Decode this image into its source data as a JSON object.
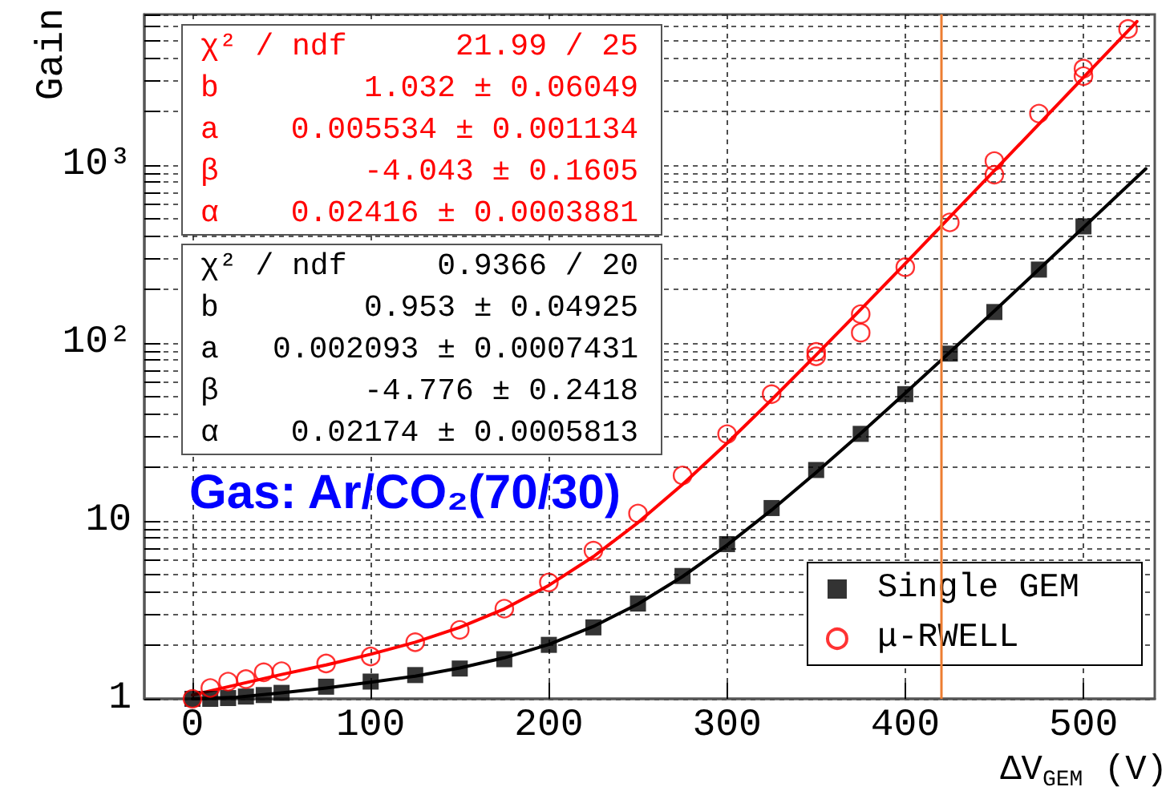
{
  "chart_data": {
    "type": "scatter",
    "xlabel": "ΔV$_{GEM}$ (V)",
    "ylabel": "Gain",
    "xlim": [
      -27,
      540
    ],
    "xticks": [
      0,
      100,
      200,
      300,
      400,
      500
    ],
    "ylim": [
      1,
      7000
    ],
    "yticks": [
      1,
      {
        "value": 2,
        "label": null
      },
      {
        "value": 3,
        "label": null
      },
      {
        "value": 4,
        "label": null
      },
      {
        "value": 5,
        "label": null
      },
      {
        "value": 6,
        "label": null
      },
      {
        "value": 7,
        "label": null
      },
      {
        "value": 8,
        "label": null
      },
      {
        "value": 9,
        "label": null
      },
      10,
      {
        "value": 20,
        "label": null
      },
      {
        "value": 30,
        "label": null
      },
      {
        "value": 40,
        "label": null
      },
      {
        "value": 50,
        "label": null
      },
      {
        "value": 60,
        "label": null
      },
      {
        "value": 70,
        "label": null
      },
      {
        "value": 80,
        "label": null
      },
      {
        "value": 90,
        "label": null
      },
      {
        "value": 100,
        "label": "10²"
      },
      {
        "value": 200,
        "label": null
      },
      {
        "value": 300,
        "label": null
      },
      {
        "value": 400,
        "label": null
      },
      {
        "value": 500,
        "label": null
      },
      {
        "value": 600,
        "label": null
      },
      {
        "value": 700,
        "label": null
      },
      {
        "value": 800,
        "label": null
      },
      {
        "value": 900,
        "label": null
      },
      {
        "value": 1000,
        "label": "10³"
      },
      {
        "value": 2000,
        "label": null
      },
      {
        "value": 3000,
        "label": null
      },
      {
        "value": 4000,
        "label": null
      },
      {
        "value": 5000,
        "label": null
      },
      {
        "value": 6000,
        "label": null
      },
      {
        "value": 7000,
        "label": null
      }
    ],
    "log": "y",
    "grid": true,
    "legend": "bottom right",
    "series": [
      {
        "name": "Single GEM",
        "color": "#000000",
        "marker": "square",
        "x": [
          0,
          10,
          20,
          30,
          40,
          50,
          75,
          100,
          125,
          150,
          175,
          200,
          225,
          250,
          275,
          300,
          325,
          350,
          375,
          400,
          425,
          450,
          475,
          500
        ],
        "values": [
          1.0,
          1.0,
          1.01,
          1.03,
          1.05,
          1.08,
          1.17,
          1.25,
          1.36,
          1.48,
          1.67,
          2.01,
          2.52,
          3.43,
          4.9,
          7.4,
          11.8,
          19.3,
          30.8,
          51.5,
          87,
          149,
          258,
          451
        ]
      },
      {
        "name": "μ-RWELL",
        "color": "#ff0000",
        "marker": "circle",
        "x": [
          0,
          10,
          20,
          30,
          40,
          50,
          75,
          100,
          125,
          150,
          175,
          200,
          225,
          250,
          275,
          300,
          325,
          350,
          350,
          375,
          375,
          400,
          425,
          450,
          450,
          475,
          500,
          500,
          525
        ],
        "values": [
          1.0,
          1.15,
          1.25,
          1.29,
          1.41,
          1.43,
          1.58,
          1.73,
          2.08,
          2.44,
          3.21,
          4.51,
          6.8,
          11.0,
          18.0,
          30.7,
          51.5,
          89,
          84,
          145,
          114,
          266,
          475,
          1050,
          880,
          1940,
          3470,
          3150,
          5800
        ]
      },
      {
        "type": "line",
        "color": "#000000",
        "marker": "none",
        "x": [
          0,
          25,
          50,
          75,
          100,
          125,
          150,
          175,
          200,
          225,
          250,
          275,
          300,
          325,
          350,
          375,
          400,
          425,
          450,
          475,
          500,
          535
        ],
        "values": [
          1.0,
          1.02,
          1.08,
          1.15,
          1.24,
          1.34,
          1.49,
          1.7,
          2.02,
          2.55,
          3.41,
          4.86,
          7.31,
          11.5,
          18.7,
          31,
          52.2,
          88.6,
          151,
          259,
          445,
          951
        ]
      },
      {
        "type": "line",
        "color": "#ff0000",
        "marker": "none",
        "x": [
          0,
          25,
          50,
          75,
          100,
          125,
          150,
          175,
          200,
          225,
          250,
          275,
          300,
          325,
          350,
          375,
          400,
          425,
          450,
          475,
          500,
          530
        ],
        "values": [
          1.05,
          1.2,
          1.37,
          1.55,
          1.78,
          2.08,
          2.52,
          3.2,
          4.34,
          6.3,
          9.78,
          16,
          27.3,
          47.9,
          85.5,
          154,
          279,
          509,
          928,
          1694,
          3096,
          6390
        ]
      }
    ],
    "ref_lines": [
      {
        "axis": "x",
        "value": 420,
        "color": "#ed7d31"
      }
    ],
    "annotations": [
      "χ² / ndf\t21.99 / 25\nb\t1.032 ± 0.06049\na\t0.005534 ± 0.001134\nβ\t-4.043 ± 0.1605\nα\t0.02416 ± 0.0003881",
      "χ² / ndf\t0.9366 / 20\nb\t0.953 ± 0.04925\na\t0.002093 ± 0.0007431\nβ\t-4.776 ± 0.2418\nα\t0.02174 ± 0.0005813",
      "Gas: Ar/CO₂(70/30)"
    ]
  }
}
